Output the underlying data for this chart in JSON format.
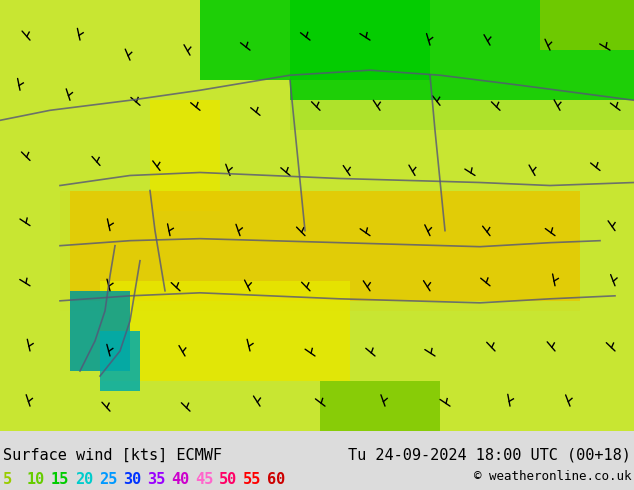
{
  "title_left": "Surface wind [kts] ECMWF",
  "title_right": "Tu 24-09-2024 18:00 UTC (00+18)",
  "copyright": "© weatheronline.co.uk",
  "legend_values": [
    5,
    10,
    15,
    20,
    25,
    30,
    35,
    40,
    45,
    50,
    55,
    60
  ],
  "legend_colors": [
    "#99cc00",
    "#66cc00",
    "#00cc00",
    "#00cccc",
    "#0099ff",
    "#0033ff",
    "#9900ff",
    "#cc00cc",
    "#ff66cc",
    "#ff0066",
    "#ff0000",
    "#cc0000"
  ],
  "bg_color": "#c8e632",
  "map_colors": {
    "light_green": "#c8e632",
    "medium_green": "#7dc800",
    "bright_green": "#00cc00",
    "dark_green": "#009900",
    "yellow_green": "#e6e600",
    "yellow": "#e6c800",
    "gold": "#e6a000",
    "cyan": "#00cccc",
    "blue_dark": "#000099",
    "teal": "#009999"
  },
  "bottom_bar_color": "#dcdcdc",
  "text_color_left": "#000000",
  "text_color_right": "#000000",
  "figsize": [
    6.34,
    4.9
  ],
  "dpi": 100
}
